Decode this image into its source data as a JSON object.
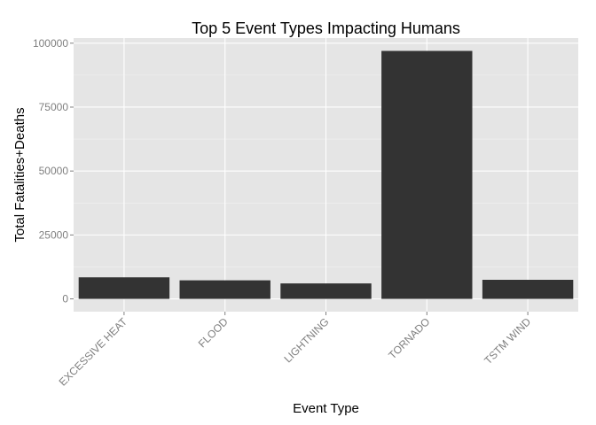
{
  "chart_data": {
    "type": "bar",
    "title": "Top 5 Event Types Impacting Humans",
    "xlabel": "Event Type",
    "ylabel": "Total Fatalities+Deaths",
    "categories": [
      "EXCESSIVE HEAT",
      "FLOOD",
      "LIGHTNING",
      "TORNADO",
      "TSTM WIND"
    ],
    "values": [
      8428,
      7259,
      6046,
      96979,
      7461
    ],
    "ylim": [
      -5000,
      102000
    ],
    "yticks": [
      0,
      25000,
      50000,
      75000,
      100000
    ],
    "ytick_labels": [
      "0",
      "25000",
      "50000",
      "75000",
      "100000"
    ],
    "grid": true,
    "legend": "none",
    "colors": {
      "panel_background": "#e5e5e5",
      "grid_major": "#ffffff",
      "grid_minor": "#f2f2f2",
      "bar_fill": "#333333",
      "tick_text": "#7f7f7f"
    }
  }
}
